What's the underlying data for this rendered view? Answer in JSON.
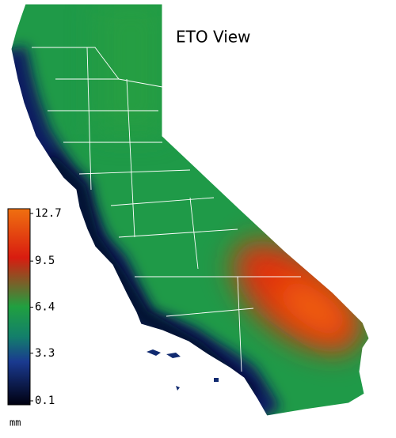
{
  "title": "ETO View",
  "legend": {
    "ticks": [
      12.7,
      9.5,
      6.4,
      3.3,
      0.1
    ],
    "range": [
      0.1,
      12.7
    ],
    "unit": "mm"
  }
}
